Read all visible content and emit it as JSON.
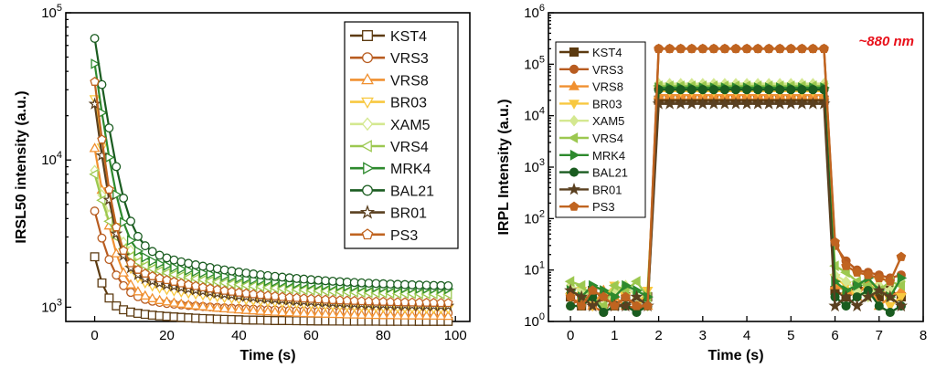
{
  "chart_data": [
    {
      "type": "line",
      "xlabel": "Time (s)",
      "ylabel": "IRSL50 intensity (a.u.)",
      "xlim": [
        -8,
        104
      ],
      "ylim": [
        800,
        100000
      ],
      "yscale": "log",
      "xticks": [
        0,
        20,
        40,
        60,
        80,
        100
      ],
      "yticks": [
        1000,
        10000,
        100000
      ],
      "ytick_labels": [
        {
          "base": "10",
          "exp": "3"
        },
        {
          "base": "10",
          "exp": "4"
        },
        {
          "base": "10",
          "exp": "5"
        }
      ],
      "legend_position": "top-right",
      "x": [
        0,
        2,
        4,
        6,
        8,
        10,
        12,
        14,
        16,
        18,
        20,
        22,
        24,
        26,
        28,
        30,
        32,
        34,
        36,
        38,
        40,
        42,
        44,
        46,
        48,
        50,
        52,
        54,
        56,
        58,
        60,
        62,
        64,
        66,
        68,
        70,
        72,
        74,
        76,
        78,
        80,
        82,
        84,
        86,
        88,
        90,
        92,
        94,
        96,
        98
      ],
      "series": [
        {
          "name": "KST4",
          "color": "#5c3a10",
          "marker": "square",
          "y0": 2200,
          "floor": 800,
          "tau": 2.2,
          "tail": 200,
          "tau2": 18
        },
        {
          "name": "VRS3",
          "color": "#b85c20",
          "marker": "circle",
          "y0": 4500,
          "floor": 900,
          "tau": 3.2,
          "tail": 300,
          "tau2": 30
        },
        {
          "name": "VRS8",
          "color": "#f09030",
          "marker": "triangle-up",
          "y0": 12000,
          "floor": 860,
          "tau": 2.6,
          "tail": 500,
          "tau2": 25
        },
        {
          "name": "BR03",
          "color": "#f8c840",
          "marker": "triangle-down",
          "y0": 26000,
          "floor": 950,
          "tau": 2.4,
          "tail": 700,
          "tau2": 30
        },
        {
          "name": "XAM5",
          "color": "#d4e890",
          "marker": "diamond",
          "y0": 8500,
          "floor": 1300,
          "tau": 3.5,
          "tail": 1200,
          "tau2": 24
        },
        {
          "name": "VRS4",
          "color": "#9cc850",
          "marker": "triangle-left",
          "y0": 8000,
          "floor": 1200,
          "tau": 3.3,
          "tail": 1100,
          "tau2": 25
        },
        {
          "name": "MRK4",
          "color": "#2e8a2e",
          "marker": "triangle-right",
          "y0": 45000,
          "floor": 1300,
          "tau": 2.4,
          "tail": 1300,
          "tau2": 26
        },
        {
          "name": "BAL21",
          "color": "#1a5c20",
          "marker": "circle",
          "y0": 67000,
          "floor": 1350,
          "tau": 2.6,
          "tail": 1600,
          "tau2": 28
        },
        {
          "name": "BR01",
          "color": "#5a4020",
          "marker": "star",
          "y0": 24000,
          "floor": 1000,
          "tau": 2.2,
          "tail": 900,
          "tau2": 26
        },
        {
          "name": "PS3",
          "color": "#c06420",
          "marker": "pentagon",
          "y0": 34000,
          "floor": 1050,
          "tau": 2.0,
          "tail": 1100,
          "tau2": 24
        }
      ]
    },
    {
      "type": "line",
      "xlabel": "Time (s)",
      "ylabel": "IRPL Intensity (a.u.)",
      "xlim": [
        -0.5,
        8
      ],
      "ylim": [
        1,
        1000000
      ],
      "yscale": "log",
      "xticks": [
        0,
        1,
        2,
        3,
        4,
        5,
        6,
        7,
        8
      ],
      "yticks": [
        1,
        10,
        100,
        1000,
        10000,
        100000,
        1000000
      ],
      "ytick_labels": [
        {
          "base": "10",
          "exp": "0"
        },
        {
          "base": "10",
          "exp": "1"
        },
        {
          "base": "10",
          "exp": "2"
        },
        {
          "base": "10",
          "exp": "3"
        },
        {
          "base": "10",
          "exp": "4"
        },
        {
          "base": "10",
          "exp": "5"
        },
        {
          "base": "10",
          "exp": "6"
        }
      ],
      "annotation": "~880 nm",
      "legend_position": "top-left",
      "x": [
        0,
        0.25,
        0.5,
        0.75,
        1.0,
        1.25,
        1.5,
        1.75,
        2.0,
        2.25,
        2.5,
        2.75,
        3.0,
        3.25,
        3.5,
        3.75,
        4.0,
        4.25,
        4.5,
        4.75,
        5.0,
        5.25,
        5.5,
        5.75,
        6.0,
        6.25,
        6.5,
        6.75,
        7.0,
        7.25,
        7.5
      ],
      "series": [
        {
          "name": "KST4",
          "color": "#5c3a10",
          "marker": "square",
          "values": [
            3,
            2,
            4,
            3,
            2,
            3,
            2,
            3,
            20000,
            20000,
            20000,
            20000,
            20000,
            20000,
            20000,
            20000,
            20000,
            20000,
            20000,
            20000,
            20000,
            20000,
            20000,
            20000,
            4,
            3,
            5,
            4,
            3,
            4,
            3
          ]
        },
        {
          "name": "VRS3",
          "color": "#b85c20",
          "marker": "circle",
          "values": [
            2,
            3,
            2,
            1.5,
            3,
            2,
            1.8,
            2,
            200000,
            200000,
            200000,
            200000,
            200000,
            200000,
            200000,
            200000,
            200000,
            200000,
            200000,
            200000,
            200000,
            200000,
            200000,
            200000,
            30,
            15,
            10,
            9,
            8,
            7,
            8
          ]
        },
        {
          "name": "VRS8",
          "color": "#f09030",
          "marker": "triangle-up",
          "values": [
            4,
            3,
            2,
            4,
            3,
            2,
            3,
            2,
            25000,
            25000,
            25000,
            25000,
            25000,
            25000,
            25000,
            25000,
            25000,
            25000,
            25000,
            25000,
            25000,
            25000,
            25000,
            25000,
            5,
            4,
            3,
            6,
            2,
            3,
            4
          ]
        },
        {
          "name": "BR03",
          "color": "#f8c840",
          "marker": "triangle-down",
          "values": [
            3,
            4,
            2,
            3,
            5,
            3,
            2,
            4,
            30000,
            30000,
            30000,
            30000,
            30000,
            30000,
            30000,
            30000,
            30000,
            30000,
            30000,
            30000,
            30000,
            30000,
            30000,
            30000,
            7,
            5,
            3,
            4,
            6,
            2,
            3
          ]
        },
        {
          "name": "XAM5",
          "color": "#d4e890",
          "marker": "diamond",
          "values": [
            5,
            4,
            3,
            2,
            4,
            5,
            3,
            2,
            42000,
            42000,
            42000,
            42000,
            42000,
            42000,
            42000,
            42000,
            42000,
            42000,
            42000,
            42000,
            42000,
            42000,
            42000,
            42000,
            8,
            6,
            4,
            3,
            5,
            4,
            6
          ]
        },
        {
          "name": "VRS4",
          "color": "#9cc850",
          "marker": "triangle-left",
          "values": [
            6,
            5,
            3,
            2,
            5,
            4,
            6,
            3,
            38000,
            38000,
            38000,
            38000,
            38000,
            38000,
            38000,
            38000,
            38000,
            38000,
            38000,
            38000,
            38000,
            38000,
            38000,
            38000,
            12,
            9,
            6,
            5,
            4,
            6,
            5
          ]
        },
        {
          "name": "MRK4",
          "color": "#2e8a2e",
          "marker": "triangle-right",
          "values": [
            4,
            3,
            5,
            4,
            3,
            5,
            4,
            3,
            35000,
            35000,
            35000,
            35000,
            35000,
            35000,
            35000,
            35000,
            35000,
            35000,
            35000,
            35000,
            35000,
            35000,
            35000,
            35000,
            6,
            4,
            5,
            7,
            4,
            3,
            7
          ]
        },
        {
          "name": "BAL21",
          "color": "#1a5c20",
          "marker": "circle",
          "values": [
            2,
            2,
            3,
            1.5,
            2,
            2,
            1.5,
            2,
            32000,
            32000,
            32000,
            32000,
            32000,
            32000,
            32000,
            32000,
            32000,
            32000,
            32000,
            32000,
            32000,
            32000,
            32000,
            32000,
            3,
            2,
            3,
            4,
            2,
            1.5,
            2
          ]
        },
        {
          "name": "BR01",
          "color": "#5a4020",
          "marker": "star",
          "values": [
            4,
            3,
            2,
            3,
            2,
            2,
            3,
            2,
            17000,
            17000,
            17000,
            17000,
            17000,
            17000,
            17000,
            17000,
            17000,
            17000,
            17000,
            17000,
            17000,
            17000,
            17000,
            17000,
            2,
            3,
            2,
            3,
            4,
            3,
            2
          ]
        },
        {
          "name": "PS3",
          "color": "#c06420",
          "marker": "pentagon",
          "values": [
            3,
            2,
            4,
            3,
            2,
            3,
            2,
            2,
            200000,
            200000,
            200000,
            200000,
            200000,
            200000,
            200000,
            200000,
            200000,
            200000,
            200000,
            200000,
            200000,
            200000,
            200000,
            200000,
            35,
            12,
            9,
            8,
            7,
            6,
            18
          ]
        }
      ]
    }
  ]
}
